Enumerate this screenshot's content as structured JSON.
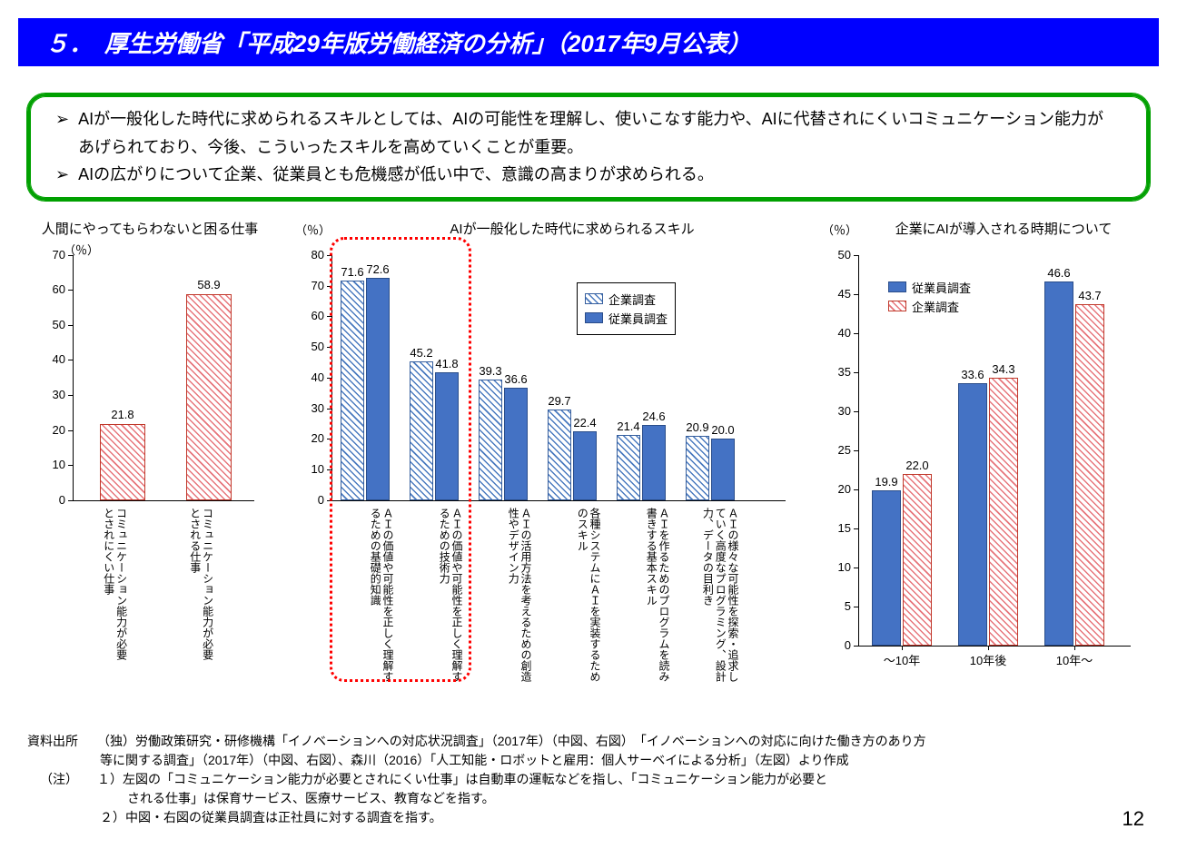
{
  "title": "５．　厚生労働省「平成29年版労働経済の分析」（2017年9月公表）",
  "page_number": "12",
  "summary": {
    "b1": "AIが一般化した時代に求められるスキルとしては、AIの可能性を理解し、使いこなす能力や、AIに代替されにくいコミュニケーション能力があげられており、今後、こういったスキルを高めていくことが重要。",
    "b2": "AIの広がりについて企業、従業員とも危機感が低い中で、意識の高まりが求められる。"
  },
  "chart1": {
    "title": "人間にやってもらわないと困る仕事",
    "unit": "（％）",
    "ymax": 70,
    "ystep": 10,
    "categories": [
      "コミュニケーション能力が必要とされにくい仕事",
      "コミュニケーション能力が必要とされる仕事"
    ],
    "values": [
      "21.8",
      "58.9"
    ],
    "fill": "hatch-red"
  },
  "chart2": {
    "title": "AIが一般化した時代に求められるスキル",
    "unit": "（％）",
    "ymax": 80,
    "ystep": 10,
    "legend": [
      "企業調査",
      "従業員調査"
    ],
    "fills": [
      "hatch-blue-lt",
      "solid-blue"
    ],
    "categories": [
      "ＡＩの価値や可能性を正しく理解するための基礎的知識",
      "ＡＩの価値や可能性を正しく理解するための技術力",
      "ＡＩの活用方法を考えるための創造性やデザイン力",
      "各種システムにＡＩを実装するためのスキル",
      "ＡＩを作るためのプログラムを読み書きする基本スキル",
      "ＡＩの様々な可能性を探索・追求していく高度なプログラミング、設計力、データの目利き"
    ],
    "values_a": [
      "71.6",
      "45.2",
      "39.3",
      "29.7",
      "21.4",
      "20.9"
    ],
    "values_b": [
      "72.6",
      "41.8",
      "36.6",
      "22.4",
      "24.6",
      "20.0"
    ],
    "red_cols": [
      0,
      1
    ]
  },
  "chart3": {
    "title": "企業にAIが導入される時期について",
    "unit": "（％）",
    "ymax": 50,
    "ystep": 5,
    "legend": [
      "従業員調査",
      "企業調査"
    ],
    "fills": [
      "solid-blue",
      "hatch-pink"
    ],
    "categories": [
      "～10年",
      "10年後",
      "10年～"
    ],
    "values_a": [
      "19.9",
      "33.6",
      "46.6"
    ],
    "values_b": [
      "22.0",
      "34.3",
      "43.7"
    ]
  },
  "footnotes": {
    "l1": "資料出所　　（独）労働政策研究・研修機構「イノベーションへの対応状況調査」（2017年）（中図、右図）　「イノベーションへの対応に向けた働き方のあり方",
    "l2": "等に関する調査」（2017年）（中図、右図）、森川（2016）「人工知能・ロボットと雇用：個人サーベイによる分析」（左図）より作成",
    "l3": "（注）　　１）左図の「コミュニケーション能力が必要とされにくい仕事」は自動車の運転などを指し、「コミュニケーション能力が必要と",
    "l4": "される仕事」は保育サービス、医療サービス、教育などを指す。",
    "l5": "２）中図・右図の従業員調査は正社員に対する調査を指す。"
  },
  "colors": {
    "title_bg": "#0000ff",
    "summary_border": "#00a000",
    "red_dot": "#ff0000",
    "blue_solid": "#4472c4",
    "grid": "#bfbfbf"
  }
}
